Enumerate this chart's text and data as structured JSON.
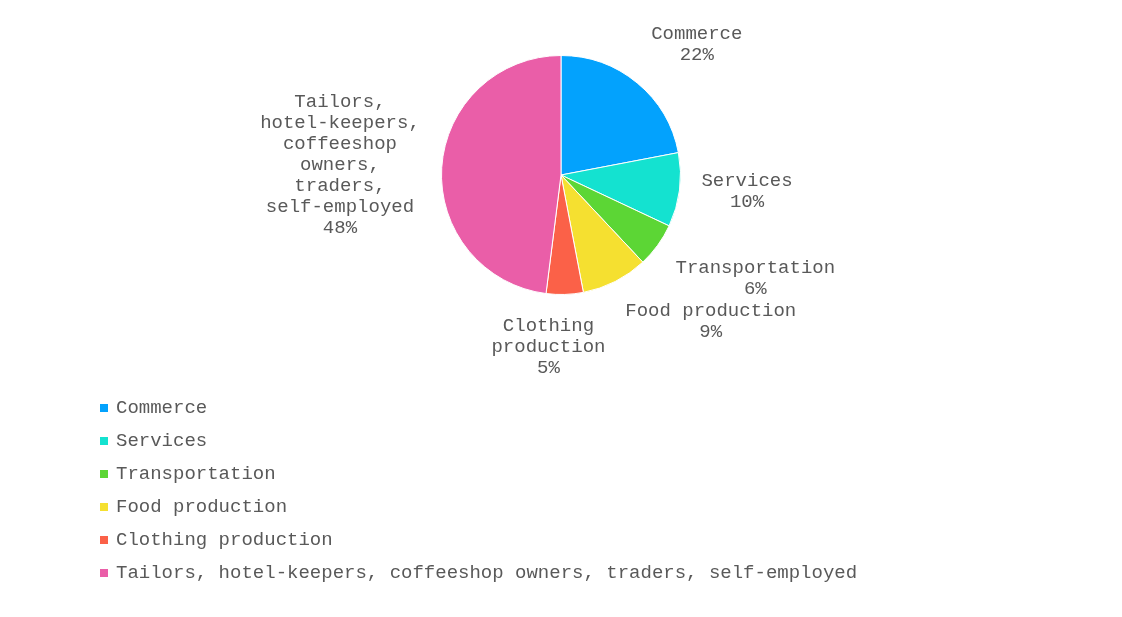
{
  "chart_data": {
    "type": "pie",
    "categories": [
      "Commerce",
      "Services",
      "Transportation",
      "Food production",
      "Clothing production",
      "Tailors, hotel-keepers, coffeeshop owners, traders, self-employed"
    ],
    "values": [
      22,
      10,
      6,
      9,
      5,
      48
    ],
    "value_labels": [
      "22%",
      "10%",
      "6%",
      "9%",
      "5%",
      "48%"
    ],
    "colors": [
      "#03a2fd",
      "#14e2d0",
      "#5cd635",
      "#f5e030",
      "#fb6148",
      "#ea5ea8"
    ],
    "legend": "bottom left"
  }
}
